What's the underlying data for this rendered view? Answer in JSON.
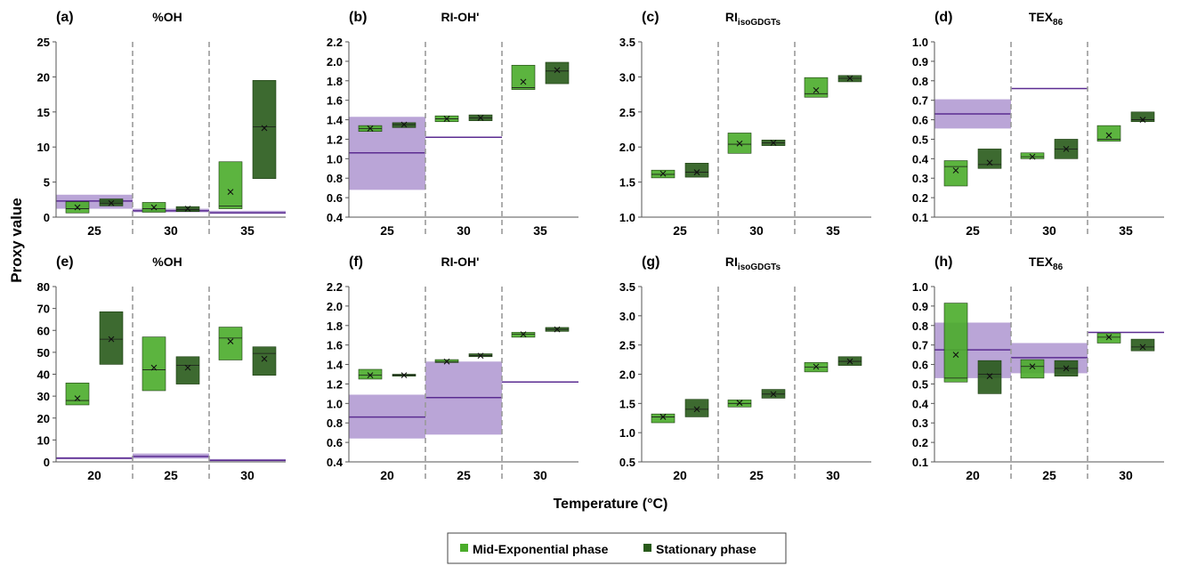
{
  "figure": {
    "ylabel": "Proxy value",
    "xlabel": "Temperature (°C)",
    "legend": [
      {
        "label": "Mid-Exponential phase",
        "color": "#4aac2a"
      },
      {
        "label": "Stationary phase",
        "color": "#285a1a"
      }
    ]
  },
  "colors": {
    "mid": "#4aac2a",
    "stationary": "#285a1a",
    "reference_fill": "#a98fcd",
    "reference_line": "#5b2c91",
    "divider": "#9a9a9a"
  },
  "chart_data": [
    {
      "panel": "(a)",
      "title": "%OH",
      "title_sub": "",
      "type": "box",
      "categories": [
        "25",
        "30",
        "35"
      ],
      "ylim": [
        0,
        25
      ],
      "ystep": 5,
      "ydec": 0,
      "reference": [
        {
          "low": 1.2,
          "high": 3.2,
          "line": 2.3
        },
        {
          "low": 0.7,
          "high": 1.2,
          "line": 0.9
        },
        {
          "low": 0.5,
          "high": 0.9,
          "line": 0.6
        }
      ],
      "series": [
        {
          "name": "Mid-Exponential phase",
          "boxes": [
            {
              "q1": 0.6,
              "q3": 2.2,
              "median": 1.2,
              "mean": 1.4
            },
            {
              "q1": 0.7,
              "q3": 2.1,
              "median": 1.2,
              "mean": 1.4
            },
            {
              "q1": 1.2,
              "q3": 7.9,
              "median": 1.6,
              "mean": 3.6
            }
          ]
        },
        {
          "name": "Stationary phase",
          "boxes": [
            {
              "q1": 1.6,
              "q3": 2.6,
              "median": 2.0,
              "mean": 2.0
            },
            {
              "q1": 0.8,
              "q3": 1.5,
              "median": 1.1,
              "mean": 1.2
            },
            {
              "q1": 5.5,
              "q3": 19.5,
              "median": 12.9,
              "mean": 12.7
            }
          ]
        }
      ]
    },
    {
      "panel": "(b)",
      "title": "RI-OH'",
      "title_sub": "",
      "type": "box",
      "categories": [
        "25",
        "30",
        "35"
      ],
      "ylim": [
        0.4,
        2.2
      ],
      "ystep": 0.2,
      "ydec": 1,
      "reference": [
        {
          "low": 0.68,
          "high": 1.43,
          "line": 1.06
        },
        {
          "low": 1.22,
          "high": 1.22,
          "line": 1.22
        },
        null
      ],
      "series": [
        {
          "name": "Mid-Exponential phase",
          "boxes": [
            {
              "q1": 1.28,
              "q3": 1.34,
              "median": 1.31,
              "mean": 1.31
            },
            {
              "q1": 1.38,
              "q3": 1.44,
              "median": 1.41,
              "mean": 1.41
            },
            {
              "q1": 1.71,
              "q3": 1.96,
              "median": 1.73,
              "mean": 1.79
            }
          ]
        },
        {
          "name": "Stationary phase",
          "boxes": [
            {
              "q1": 1.32,
              "q3": 1.37,
              "median": 1.35,
              "mean": 1.35
            },
            {
              "q1": 1.39,
              "q3": 1.45,
              "median": 1.42,
              "mean": 1.42
            },
            {
              "q1": 1.77,
              "q3": 1.99,
              "median": 1.9,
              "mean": 1.91
            }
          ]
        }
      ]
    },
    {
      "panel": "(c)",
      "title": "RI",
      "title_sub": "isoGDGTs",
      "type": "box",
      "categories": [
        "25",
        "30",
        "35"
      ],
      "ylim": [
        1.0,
        3.5
      ],
      "ystep": 0.5,
      "ydec": 1,
      "reference": [
        null,
        null,
        null
      ],
      "series": [
        {
          "name": "Mid-Exponential phase",
          "boxes": [
            {
              "q1": 1.56,
              "q3": 1.67,
              "median": 1.61,
              "mean": 1.62
            },
            {
              "q1": 1.91,
              "q3": 2.2,
              "median": 2.04,
              "mean": 2.05
            },
            {
              "q1": 2.71,
              "q3": 2.99,
              "median": 2.76,
              "mean": 2.81
            }
          ]
        },
        {
          "name": "Stationary phase",
          "boxes": [
            {
              "q1": 1.57,
              "q3": 1.77,
              "median": 1.64,
              "mean": 1.64
            },
            {
              "q1": 2.02,
              "q3": 2.1,
              "median": 2.06,
              "mean": 2.06
            },
            {
              "q1": 2.93,
              "q3": 3.02,
              "median": 2.98,
              "mean": 2.98
            }
          ]
        }
      ]
    },
    {
      "panel": "(d)",
      "title": "TEX",
      "title_sub": "86",
      "type": "box",
      "categories": [
        "25",
        "30",
        "35"
      ],
      "ylim": [
        0.1,
        1.0
      ],
      "ystep": 0.1,
      "ydec": 1,
      "reference": [
        {
          "low": 0.555,
          "high": 0.705,
          "line": 0.63
        },
        {
          "low": 0.76,
          "high": 0.76,
          "line": 0.76
        },
        null
      ],
      "series": [
        {
          "name": "Mid-Exponential phase",
          "boxes": [
            {
              "q1": 0.26,
              "q3": 0.39,
              "median": 0.36,
              "mean": 0.34
            },
            {
              "q1": 0.4,
              "q3": 0.43,
              "median": 0.41,
              "mean": 0.41
            },
            {
              "q1": 0.49,
              "q3": 0.57,
              "median": 0.5,
              "mean": 0.52
            }
          ]
        },
        {
          "name": "Stationary phase",
          "boxes": [
            {
              "q1": 0.35,
              "q3": 0.45,
              "median": 0.37,
              "mean": 0.38
            },
            {
              "q1": 0.4,
              "q3": 0.5,
              "median": 0.45,
              "mean": 0.45
            },
            {
              "q1": 0.59,
              "q3": 0.64,
              "median": 0.6,
              "mean": 0.6
            }
          ]
        }
      ]
    },
    {
      "panel": "(e)",
      "title": "%OH",
      "title_sub": "",
      "type": "box",
      "categories": [
        "20",
        "25",
        "30"
      ],
      "ylim": [
        0,
        80
      ],
      "ystep": 10,
      "ydec": 0,
      "reference": [
        {
          "low": 1.2,
          "high": 2.2,
          "line": 1.7
        },
        {
          "low": 1.5,
          "high": 3.8,
          "line": 2.5
        },
        {
          "low": 0.3,
          "high": 1.3,
          "line": 0.7
        }
      ],
      "series": [
        {
          "name": "Mid-Exponential phase",
          "boxes": [
            {
              "q1": 26,
              "q3": 36,
              "median": 28,
              "mean": 29
            },
            {
              "q1": 32.5,
              "q3": 57,
              "median": 42,
              "mean": 43
            },
            {
              "q1": 46.5,
              "q3": 61.5,
              "median": 56.5,
              "mean": 55
            }
          ]
        },
        {
          "name": "Stationary phase",
          "boxes": [
            {
              "q1": 44.5,
              "q3": 68.5,
              "median": 56,
              "mean": 56
            },
            {
              "q1": 35.5,
              "q3": 48,
              "median": 44,
              "mean": 43
            },
            {
              "q1": 39.5,
              "q3": 52.5,
              "median": 49.5,
              "mean": 47
            }
          ]
        }
      ]
    },
    {
      "panel": "(f)",
      "title": "RI-OH'",
      "title_sub": "",
      "type": "box",
      "categories": [
        "20",
        "25",
        "30"
      ],
      "ylim": [
        0.4,
        2.2
      ],
      "ystep": 0.2,
      "ydec": 1,
      "reference": [
        {
          "low": 0.64,
          "high": 1.09,
          "line": 0.86
        },
        {
          "low": 0.68,
          "high": 1.43,
          "line": 1.06
        },
        {
          "low": 1.22,
          "high": 1.22,
          "line": 1.22
        }
      ],
      "series": [
        {
          "name": "Mid-Exponential phase",
          "boxes": [
            {
              "q1": 1.25,
              "q3": 1.35,
              "median": 1.29,
              "mean": 1.29
            },
            {
              "q1": 1.42,
              "q3": 1.45,
              "median": 1.43,
              "mean": 1.43
            },
            {
              "q1": 1.68,
              "q3": 1.73,
              "median": 1.71,
              "mean": 1.71
            }
          ]
        },
        {
          "name": "Stationary phase",
          "boxes": [
            {
              "q1": 1.28,
              "q3": 1.3,
              "median": 1.29,
              "mean": 1.29
            },
            {
              "q1": 1.48,
              "q3": 1.51,
              "median": 1.49,
              "mean": 1.49
            },
            {
              "q1": 1.74,
              "q3": 1.78,
              "median": 1.76,
              "mean": 1.76
            }
          ]
        }
      ]
    },
    {
      "panel": "(g)",
      "title": "RI",
      "title_sub": "isoGDGTs",
      "type": "box",
      "categories": [
        "20",
        "25",
        "30"
      ],
      "ylim": [
        0.5,
        3.5
      ],
      "ystep": 0.5,
      "ydec": 1,
      "reference": [
        null,
        null,
        null
      ],
      "series": [
        {
          "name": "Mid-Exponential phase",
          "boxes": [
            {
              "q1": 1.17,
              "q3": 1.32,
              "median": 1.27,
              "mean": 1.27
            },
            {
              "q1": 1.44,
              "q3": 1.56,
              "median": 1.5,
              "mean": 1.51
            },
            {
              "q1": 2.04,
              "q3": 2.2,
              "median": 2.12,
              "mean": 2.13
            }
          ]
        },
        {
          "name": "Stationary phase",
          "boxes": [
            {
              "q1": 1.27,
              "q3": 1.57,
              "median": 1.4,
              "mean": 1.4
            },
            {
              "q1": 1.59,
              "q3": 1.74,
              "median": 1.66,
              "mean": 1.66
            },
            {
              "q1": 2.15,
              "q3": 2.3,
              "median": 2.22,
              "mean": 2.22
            }
          ]
        }
      ]
    },
    {
      "panel": "(h)",
      "title": "TEX",
      "title_sub": "86",
      "type": "box",
      "categories": [
        "20",
        "25",
        "30"
      ],
      "ylim": [
        0.1,
        1.0
      ],
      "ystep": 0.1,
      "ydec": 1,
      "reference": [
        {
          "low": 0.53,
          "high": 0.815,
          "line": 0.675
        },
        {
          "low": 0.555,
          "high": 0.71,
          "line": 0.635
        },
        {
          "low": 0.765,
          "high": 0.765,
          "line": 0.765
        }
      ],
      "series": [
        {
          "name": "Mid-Exponential phase",
          "boxes": [
            {
              "q1": 0.51,
              "q3": 0.915,
              "median": 0.53,
              "mean": 0.65
            },
            {
              "q1": 0.53,
              "q3": 0.625,
              "median": 0.59,
              "mean": 0.59
            },
            {
              "q1": 0.71,
              "q3": 0.76,
              "median": 0.74,
              "mean": 0.74
            }
          ]
        },
        {
          "name": "Stationary phase",
          "boxes": [
            {
              "q1": 0.45,
              "q3": 0.62,
              "median": 0.55,
              "mean": 0.54
            },
            {
              "q1": 0.54,
              "q3": 0.62,
              "median": 0.58,
              "mean": 0.58
            },
            {
              "q1": 0.67,
              "q3": 0.73,
              "median": 0.69,
              "mean": 0.69
            }
          ]
        }
      ]
    }
  ]
}
